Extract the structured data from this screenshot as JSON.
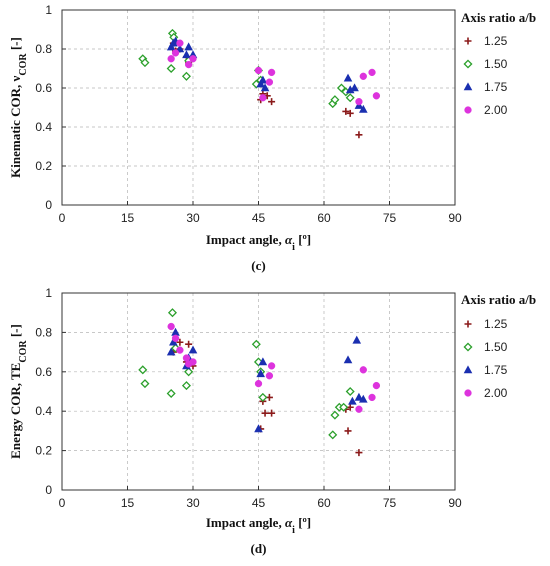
{
  "chart_data": [
    {
      "type": "scatter",
      "panel_label": "(c)",
      "xlabel_main": "Impact angle, ",
      "xlabel_sym": "α",
      "xlabel_sub": "i",
      "xlabel_unit": " [º]",
      "ylabel_main": "Kinematic COR, ν",
      "ylabel_sub": "COR",
      "ylabel_unit": " [-]",
      "xlim": [
        0,
        90
      ],
      "ylim": [
        0,
        1
      ],
      "xticks": [
        "0",
        "15",
        "30",
        "45",
        "60",
        "75",
        "90"
      ],
      "yticks": [
        "0",
        "0.2",
        "0.4",
        "0.6",
        "0.8",
        "1"
      ],
      "grid": true,
      "legend_title": "Axis ratio a/b",
      "legend_position": "right",
      "series": [
        {
          "name": "1.25",
          "marker": "plus",
          "color": "#8b1a1a",
          "points": [
            [
              25.5,
              0.83
            ],
            [
              26,
              0.79
            ],
            [
              27,
              0.8
            ],
            [
              28.5,
              0.76
            ],
            [
              29,
              0.73
            ],
            [
              45.5,
              0.54
            ],
            [
              46,
              0.57
            ],
            [
              47,
              0.56
            ],
            [
              48,
              0.53
            ],
            [
              65,
              0.48
            ],
            [
              66,
              0.47
            ],
            [
              68,
              0.36
            ]
          ]
        },
        {
          "name": "1.50",
          "marker": "diamond",
          "color": "#2ca02c",
          "points": [
            [
              18.5,
              0.75
            ],
            [
              19,
              0.73
            ],
            [
              25,
              0.7
            ],
            [
              25.3,
              0.88
            ],
            [
              25.6,
              0.86
            ],
            [
              28.5,
              0.66
            ],
            [
              29,
              0.74
            ],
            [
              44.5,
              0.62
            ],
            [
              45,
              0.69
            ],
            [
              45.5,
              0.64
            ],
            [
              62,
              0.52
            ],
            [
              62.5,
              0.54
            ],
            [
              64,
              0.6
            ],
            [
              65,
              0.58
            ],
            [
              66,
              0.55
            ]
          ]
        },
        {
          "name": "1.75",
          "marker": "triangle",
          "color": "#1a2fb0",
          "points": [
            [
              25,
              0.81
            ],
            [
              25.5,
              0.83
            ],
            [
              26,
              0.84
            ],
            [
              27,
              0.8
            ],
            [
              28.5,
              0.77
            ],
            [
              29,
              0.81
            ],
            [
              30,
              0.77
            ],
            [
              45.5,
              0.62
            ],
            [
              46,
              0.64
            ],
            [
              46.5,
              0.6
            ],
            [
              65.5,
              0.65
            ],
            [
              66,
              0.59
            ],
            [
              67,
              0.6
            ],
            [
              68,
              0.51
            ],
            [
              69,
              0.49
            ]
          ]
        },
        {
          "name": "2.00",
          "marker": "circle",
          "color": "#dd33dd",
          "points": [
            [
              25,
              0.75
            ],
            [
              26,
              0.78
            ],
            [
              27,
              0.83
            ],
            [
              29,
              0.72
            ],
            [
              30,
              0.75
            ],
            [
              45,
              0.69
            ],
            [
              46,
              0.55
            ],
            [
              47.5,
              0.63
            ],
            [
              48,
              0.68
            ],
            [
              68,
              0.53
            ],
            [
              69,
              0.66
            ],
            [
              71,
              0.68
            ],
            [
              72,
              0.56
            ]
          ]
        }
      ]
    },
    {
      "type": "scatter",
      "panel_label": "(d)",
      "xlabel_main": "Impact angle, ",
      "xlabel_sym": "α",
      "xlabel_sub": "i",
      "xlabel_unit": " [º]",
      "ylabel_main": "Energy COR, TE",
      "ylabel_sub": "COR",
      "ylabel_unit": " [-]",
      "xlim": [
        0,
        90
      ],
      "ylim": [
        0,
        1
      ],
      "xticks": [
        "0",
        "15",
        "30",
        "45",
        "60",
        "75",
        "90"
      ],
      "yticks": [
        "0",
        "0.2",
        "0.4",
        "0.6",
        "0.8",
        "1"
      ],
      "grid": true,
      "legend_title": "Axis ratio a/b",
      "legend_position": "right",
      "series": [
        {
          "name": "1.25",
          "marker": "plus",
          "color": "#8b1a1a",
          "points": [
            [
              25.5,
              0.7
            ],
            [
              26,
              0.72
            ],
            [
              27,
              0.75
            ],
            [
              28.5,
              0.65
            ],
            [
              29,
              0.74
            ],
            [
              30,
              0.63
            ],
            [
              45.5,
              0.31
            ],
            [
              46,
              0.45
            ],
            [
              46.5,
              0.39
            ],
            [
              47.5,
              0.47
            ],
            [
              48,
              0.39
            ],
            [
              65,
              0.41
            ],
            [
              65.5,
              0.3
            ],
            [
              66,
              0.42
            ],
            [
              68,
              0.19
            ]
          ]
        },
        {
          "name": "1.50",
          "marker": "diamond",
          "color": "#2ca02c",
          "points": [
            [
              18.5,
              0.61
            ],
            [
              19,
              0.54
            ],
            [
              25,
              0.49
            ],
            [
              25.3,
              0.9
            ],
            [
              26,
              0.72
            ],
            [
              28.5,
              0.53
            ],
            [
              29,
              0.6
            ],
            [
              44.5,
              0.74
            ],
            [
              45,
              0.65
            ],
            [
              45.5,
              0.6
            ],
            [
              46,
              0.47
            ],
            [
              62,
              0.28
            ],
            [
              62.5,
              0.38
            ],
            [
              63.5,
              0.42
            ],
            [
              64.5,
              0.42
            ],
            [
              66,
              0.5
            ]
          ]
        },
        {
          "name": "1.75",
          "marker": "triangle",
          "color": "#1a2fb0",
          "points": [
            [
              25,
              0.7
            ],
            [
              25.5,
              0.75
            ],
            [
              26,
              0.8
            ],
            [
              28.5,
              0.63
            ],
            [
              29,
              0.67
            ],
            [
              30,
              0.71
            ],
            [
              45,
              0.31
            ],
            [
              45.5,
              0.59
            ],
            [
              46,
              0.65
            ],
            [
              65.5,
              0.66
            ],
            [
              66.5,
              0.45
            ],
            [
              67.5,
              0.76
            ],
            [
              68,
              0.47
            ],
            [
              69,
              0.46
            ]
          ]
        },
        {
          "name": "2.00",
          "marker": "circle",
          "color": "#dd33dd",
          "points": [
            [
              25,
              0.83
            ],
            [
              26,
              0.77
            ],
            [
              27,
              0.71
            ],
            [
              28.5,
              0.67
            ],
            [
              29,
              0.64
            ],
            [
              30,
              0.65
            ],
            [
              45,
              0.54
            ],
            [
              47.5,
              0.58
            ],
            [
              48,
              0.63
            ],
            [
              68,
              0.41
            ],
            [
              69,
              0.61
            ],
            [
              71,
              0.47
            ],
            [
              72,
              0.53
            ]
          ]
        }
      ]
    }
  ]
}
